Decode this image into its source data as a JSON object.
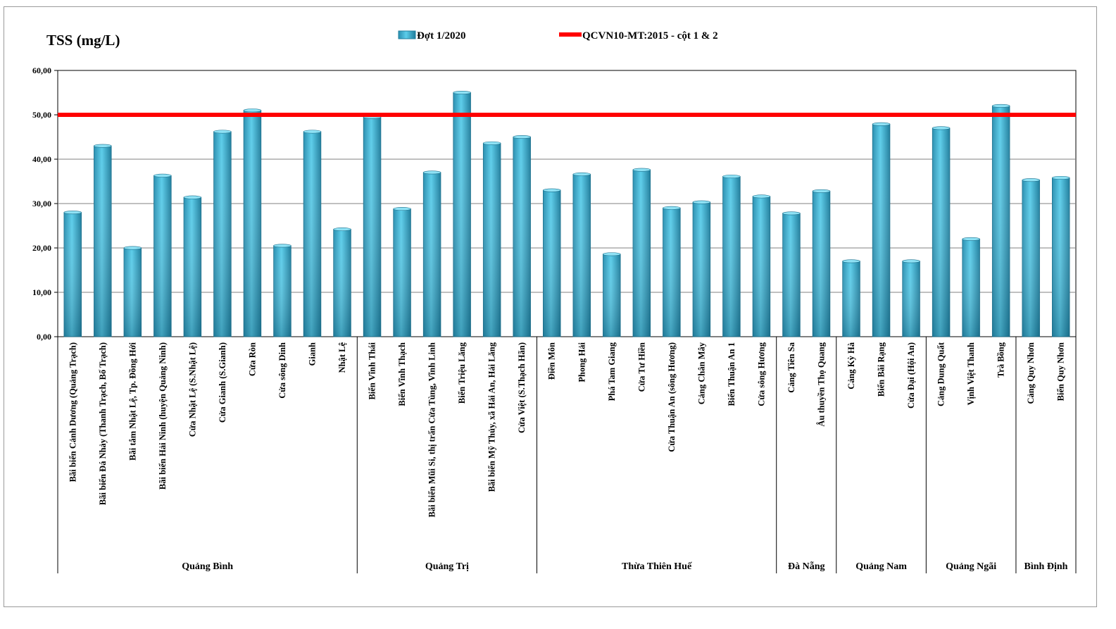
{
  "chart_data": {
    "type": "bar",
    "ylabel": "TSS (mg/L)",
    "ylim": [
      0,
      60
    ],
    "yticks": [
      "0,00",
      "10,00",
      "20,00",
      "30,00",
      "40,00",
      "50,00",
      "60,00"
    ],
    "grid": true,
    "legend_position": "top-center",
    "categories": [
      "Bãi biển Cảnh Dương (Quảng Trạch)",
      "Bãi biển Đá Nhảy (Thanh Trạch, Bố Trạch)",
      "Bãi tắm Nhật Lệ, Tp. Đồng Hới",
      "Bãi biển Hải Ninh (huyện Quảng Ninh)",
      "Cửa Nhật Lệ (S.Nhật Lệ)",
      "Cửa Gianh (S.Gianh)",
      "Cửa Ròn",
      "Cửa sông Dinh",
      "Gianh",
      "Nhật Lệ",
      "Biển Vĩnh Thái",
      "Biển Vĩnh Thạch",
      "Bãi biển Mũi Si, thị trấn Cửa Tùng, Vĩnh Linh",
      "Biển Triệu Lăng",
      "Bãi biển Mỹ Thủy, xã Hải An, Hải Lăng",
      "Cửa Việt (S.Thạch Hãn)",
      "Điền Môn",
      "Phong Hải",
      "Phá Tam Giang",
      "Cửa Tư Hiền",
      "Cửa Thuận An (sông Hương)",
      "Cảng Chân Mây",
      "Biển Thuận An 1",
      "Cửa sông Hương",
      "Cảng Tiên Sa",
      "Âu thuyền Thọ Quang",
      "Cảng Kỳ Hà",
      "Biển Bãi Rạng",
      "Cửa Đại (Hội An)",
      "Cảng Dung Quất",
      "Vịnh Việt Thanh",
      "Trà Bồng",
      "Cảng Quy Nhơn",
      "Biển Quy Nhơn"
    ],
    "groups": [
      {
        "name": "Quảng Bình",
        "count": 10
      },
      {
        "name": "Quảng Trị",
        "count": 6
      },
      {
        "name": "Thừa Thiên Huế",
        "count": 8
      },
      {
        "name": "Đà Nẵng",
        "count": 2
      },
      {
        "name": "Quảng Nam",
        "count": 3
      },
      {
        "name": "Quảng Ngãi",
        "count": 3
      },
      {
        "name": "Bình Định",
        "count": 2
      }
    ],
    "series": [
      {
        "name": "Đợt 1/2020",
        "color": "#3ab5d8",
        "values": [
          28,
          43,
          20,
          36.3,
          31.4,
          46.2,
          51,
          20.5,
          46.2,
          24.2,
          49.5,
          28.8,
          37,
          55,
          43.6,
          45,
          33,
          36.6,
          18.6,
          37.6,
          29,
          30.3,
          36.1,
          31.6,
          27.8,
          32.8,
          17,
          47.9,
          17,
          47,
          22,
          52,
          35.3,
          35.8
        ]
      }
    ],
    "reference_line": {
      "name": "QCVN10-MT:2015 - cột 1 & 2",
      "value": 50,
      "color": "#ff0000"
    }
  }
}
